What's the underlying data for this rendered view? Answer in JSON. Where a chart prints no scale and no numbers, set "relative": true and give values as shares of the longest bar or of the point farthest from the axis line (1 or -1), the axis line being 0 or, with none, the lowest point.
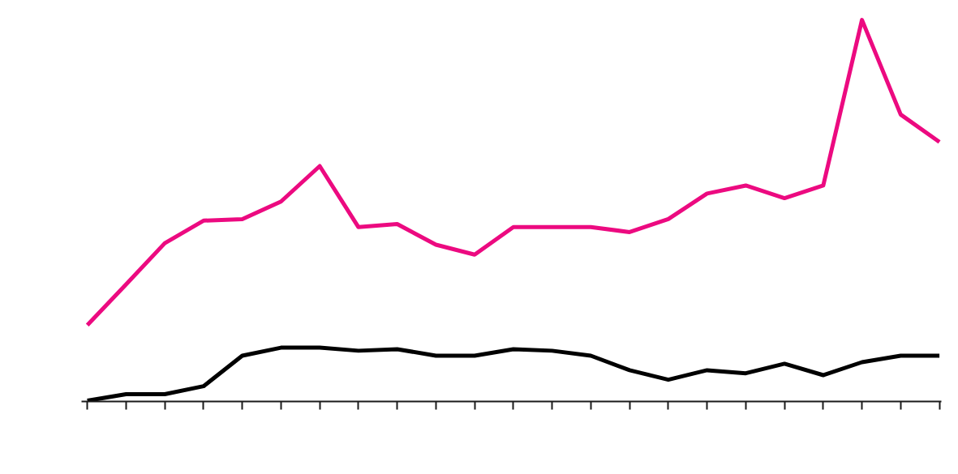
{
  "chart_data": {
    "type": "line",
    "relative": true,
    "categories": [
      null,
      null,
      null,
      null,
      null,
      null,
      null,
      null,
      null,
      null,
      null,
      null,
      null,
      null,
      null,
      null,
      null,
      null,
      null,
      null,
      null,
      null,
      null
    ],
    "series": [
      {
        "color": "#ec0a80",
        "values": [
          0.2,
          0.307,
          0.415,
          0.474,
          0.478,
          0.524,
          0.617,
          0.457,
          0.465,
          0.411,
          0.385,
          0.457,
          0.457,
          0.457,
          0.444,
          0.478,
          0.545,
          0.566,
          0.533,
          0.566,
          1,
          0.752,
          0.68
        ]
      },
      {
        "color": "#000000",
        "values": [
          0.002,
          0.019,
          0.019,
          0.04,
          0.12,
          0.141,
          0.141,
          0.133,
          0.137,
          0.12,
          0.12,
          0.137,
          0.133,
          0.12,
          0.082,
          0.057,
          0.082,
          0.074,
          0.099,
          0.069,
          0.103,
          0.12,
          0.12
        ]
      }
    ],
    "grid": false,
    "marker": "none",
    "line_style": "solid"
  }
}
